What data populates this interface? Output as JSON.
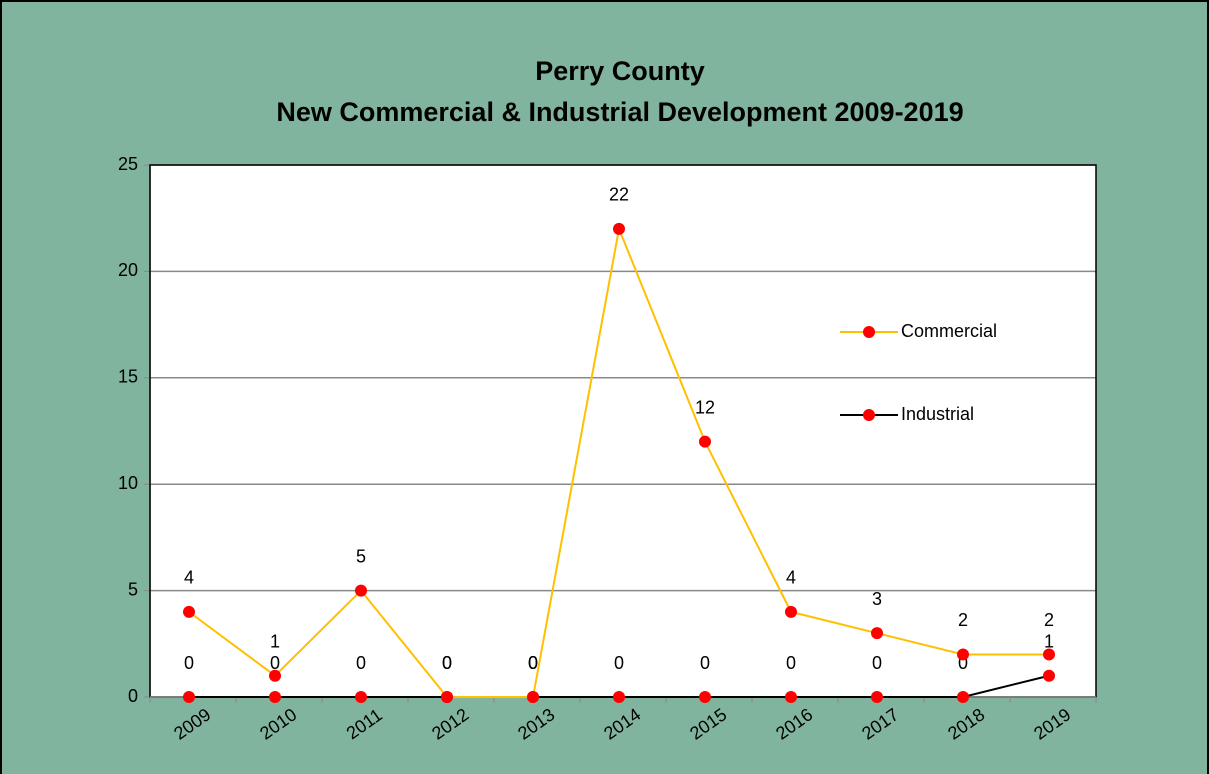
{
  "chart_data": {
    "type": "line",
    "title": [
      "Perry County",
      "New Commercial & Industrial Development 2009-2019"
    ],
    "categories": [
      "2009",
      "2010",
      "2011",
      "2012",
      "2013",
      "2014",
      "2015",
      "2016",
      "2017",
      "2018",
      "2019"
    ],
    "series": [
      {
        "name": "Industrial",
        "color": "#000000",
        "marker_color": "#ff0000",
        "values": [
          0,
          0,
          0,
          0,
          0,
          0,
          0,
          0,
          0,
          0,
          1
        ]
      },
      {
        "name": "Commercial",
        "color": "#ffc000",
        "marker_color": "#ff0000",
        "values": [
          4,
          1,
          5,
          0,
          0,
          22,
          12,
          4,
          3,
          2,
          2
        ]
      }
    ],
    "legend_order": [
      1,
      0
    ],
    "ylim": [
      0,
      25
    ],
    "yticks": [
      0,
      5,
      10,
      15,
      20,
      25
    ],
    "grid": true,
    "legend": "right",
    "background": "#80b49e"
  }
}
